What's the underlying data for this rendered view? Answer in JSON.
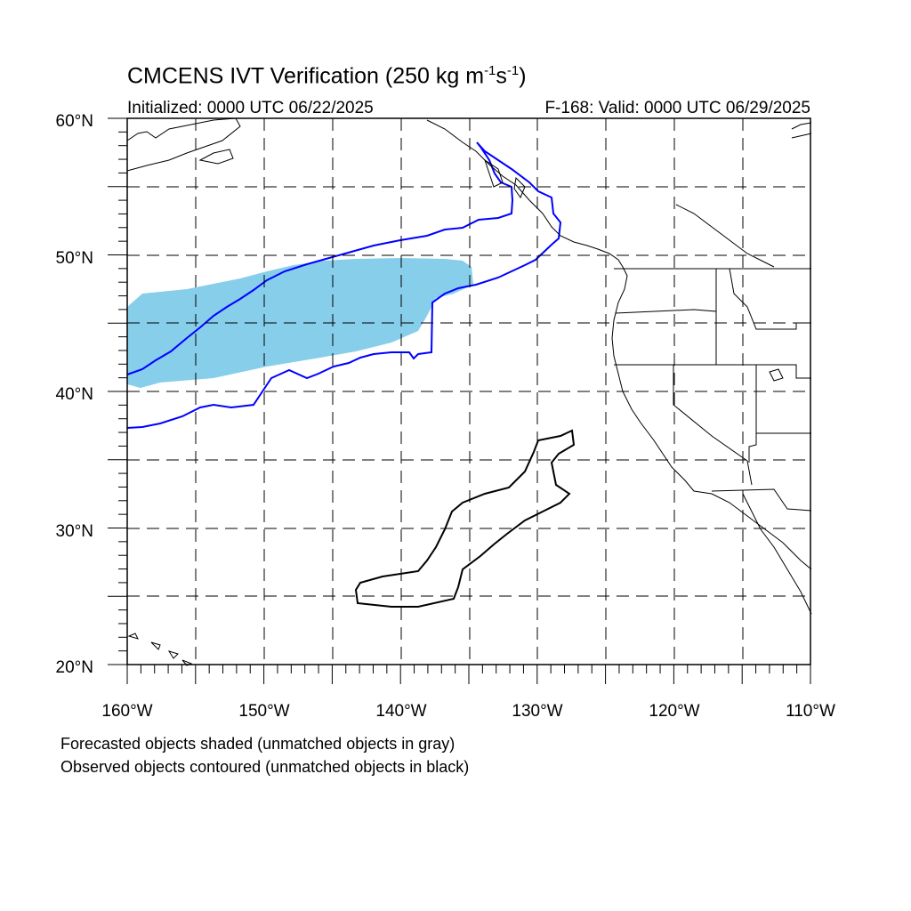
{
  "title": {
    "main": "CMCENS IVT Verification (250 kg m",
    "exp1": "-1",
    "mid": "s",
    "exp2": "-1",
    "end": ")"
  },
  "init_label": "Initialized: 0000 UTC 06/22/2025",
  "valid_label": "F-168: Valid: 0000 UTC 06/29/2025",
  "lat_labels": [
    "60°N",
    "50°N",
    "40°N",
    "30°N",
    "20°N"
  ],
  "lon_labels": [
    "160°W",
    "150°W",
    "140°W",
    "130°W",
    "120°W",
    "110°W"
  ],
  "caption_forecast": "Forecasted objects shaded (unmatched objects in gray)",
  "caption_observed": "Observed objects contoured (unmatched objects in black)",
  "colors": {
    "forecast_fill": "#87ceeb",
    "matched_contour": "#0000ff",
    "unmatched_contour": "#000000"
  },
  "map_extent": {
    "lon_min": -160,
    "lon_max": -110,
    "lat_min": 20,
    "lat_max": 60
  }
}
